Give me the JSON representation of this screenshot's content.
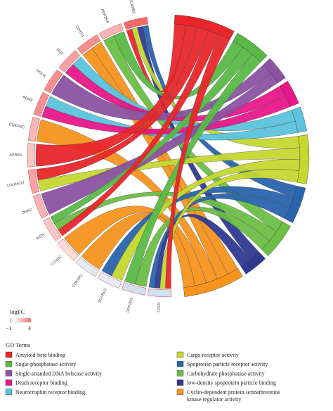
{
  "chart_data": {
    "type": "chord",
    "title": "",
    "genes": [
      "SCARB1",
      "PPP2R4",
      "CDKN1",
      "NGF",
      "POLG",
      "BDNF",
      "CDKN2C",
      "APBB3",
      "LDLRAD3",
      "DNA2",
      "INSR",
      "CCND2",
      "CDK5R1",
      "SCARA3",
      "PPP2R3",
      "LDLR"
    ],
    "logFC": [
      4,
      2,
      3,
      2.5,
      3,
      3,
      2,
      1.5,
      2.5,
      2,
      1.5,
      1,
      -0.5,
      -0.5,
      -0.8,
      -0.8
    ],
    "logfc_scale": {
      "title": "logFC",
      "min": -1,
      "max": 4,
      "min_label": "−1",
      "max_label": "4",
      "low_color": "#c6d9ec",
      "mid_color": "#ffffff",
      "high_color": "#f26a6a"
    },
    "go_terms_title": "GO Terms",
    "go_terms": [
      {
        "label": "Amyioid-beta binding",
        "color": "#e8262b"
      },
      {
        "label": "Sugar-phosphatase activity",
        "color": "#58b947"
      },
      {
        "label": "Single-stranded DNA helicase activity",
        "color": "#8b52a2"
      },
      {
        "label": "Death receptor binding",
        "color": "#e8178a"
      },
      {
        "label": "Neurocrophin receptor binding",
        "color": "#5bc3dd"
      },
      {
        "label": "Cargo receptor activity",
        "color": "#c5d82f"
      },
      {
        "label": "Spoprotein particte receptor activity",
        "color": "#2a64ad"
      },
      {
        "label": "Carbohydrate phosphatase activity",
        "color": "#6cbe45"
      },
      {
        "label": "low-density spopeotein particle binding",
        "color": "#2e3a92"
      },
      {
        "label": "Cyclin-dependent protein serinethreonine kinase regulator activity",
        "color": "#f7941d"
      }
    ],
    "links": [
      {
        "gene": "SCARB1",
        "term": 6
      },
      {
        "gene": "SCARB1",
        "term": 8
      },
      {
        "gene": "SCARB1",
        "term": 5
      },
      {
        "gene": "SCARB1",
        "term": 0
      },
      {
        "gene": "PPP2R4",
        "term": 1
      },
      {
        "gene": "PPP2R4",
        "term": 7
      },
      {
        "gene": "CDKN1",
        "term": 9
      },
      {
        "gene": "CDKN1",
        "term": 9
      },
      {
        "gene": "NGF",
        "term": 4
      },
      {
        "gene": "NGF",
        "term": 3
      },
      {
        "gene": "POLG",
        "term": 2
      },
      {
        "gene": "BDNF",
        "term": 4
      },
      {
        "gene": "BDNF",
        "term": 3
      },
      {
        "gene": "CDKN2C",
        "term": 9
      },
      {
        "gene": "APBB3",
        "term": 0
      },
      {
        "gene": "LDLRAD3",
        "term": 0
      },
      {
        "gene": "LDLRAD3",
        "term": 5
      },
      {
        "gene": "DNA2",
        "term": 2
      },
      {
        "gene": "INSR",
        "term": 1
      },
      {
        "gene": "INSR",
        "term": 7
      },
      {
        "gene": "INSR",
        "term": 0
      },
      {
        "gene": "CCND2",
        "term": 9
      },
      {
        "gene": "CDK5R1",
        "term": 9
      },
      {
        "gene": "SCARA3",
        "term": 6
      },
      {
        "gene": "SCARA3",
        "term": 5
      },
      {
        "gene": "PPP2R3",
        "term": 1
      },
      {
        "gene": "PPP2R3",
        "term": 7
      },
      {
        "gene": "LDLR",
        "term": 6
      },
      {
        "gene": "LDLR",
        "term": 8
      },
      {
        "gene": "LDLR",
        "term": 5
      },
      {
        "gene": "LDLR",
        "term": 0
      }
    ]
  }
}
